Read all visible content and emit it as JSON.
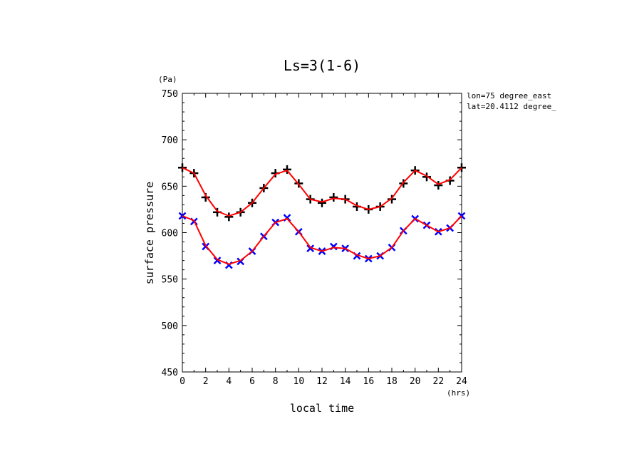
{
  "chart_data": {
    "type": "line",
    "title": "Ls=3(1-6)",
    "xlabel": "local time",
    "ylabel": "surface pressure",
    "x_unit": "(hrs)",
    "y_unit": "(Pa)",
    "xlim": [
      0,
      24
    ],
    "ylim": [
      450,
      750
    ],
    "xticks": [
      "0",
      "2",
      "4",
      "6",
      "8",
      "10",
      "12",
      "14",
      "16",
      "18",
      "20",
      "22",
      "24"
    ],
    "yticks": [
      "450",
      "500",
      "550",
      "600",
      "650",
      "700",
      "750"
    ],
    "annotations": [
      "lon=75 degree_east",
      "lat=20.4112 degree_"
    ],
    "grid": false,
    "x": [
      0,
      1,
      2,
      3,
      4,
      5,
      6,
      7,
      8,
      9,
      10,
      11,
      12,
      13,
      14,
      15,
      16,
      17,
      18,
      19,
      20,
      21,
      22,
      23,
      24
    ],
    "series": [
      {
        "color": "#000000",
        "marker": "plus",
        "values": [
          670,
          664,
          638,
          622,
          617,
          622,
          632,
          648,
          664,
          668,
          653,
          636,
          632,
          638,
          636,
          628,
          625,
          628,
          636,
          653,
          667,
          660,
          651,
          656,
          670
        ]
      },
      {
        "color": "#ff0000",
        "marker": "none",
        "values": [
          670,
          664,
          640,
          623,
          618,
          622,
          632,
          648,
          663,
          667,
          652,
          636,
          633,
          637,
          636,
          629,
          625,
          628,
          637,
          654,
          667,
          661,
          652,
          657,
          670
        ]
      },
      {
        "color": "#0000ff",
        "marker": "x",
        "values": [
          618,
          612,
          585,
          570,
          565,
          569,
          580,
          596,
          611,
          616,
          601,
          583,
          580,
          585,
          583,
          575,
          572,
          575,
          584,
          602,
          615,
          608,
          601,
          605,
          618
        ]
      },
      {
        "color": "#ff0000",
        "marker": "none",
        "values": [
          618,
          613,
          586,
          571,
          566,
          570,
          580,
          596,
          611,
          615,
          601,
          584,
          580,
          584,
          583,
          576,
          572,
          575,
          584,
          602,
          615,
          608,
          601,
          605,
          618
        ]
      }
    ]
  }
}
